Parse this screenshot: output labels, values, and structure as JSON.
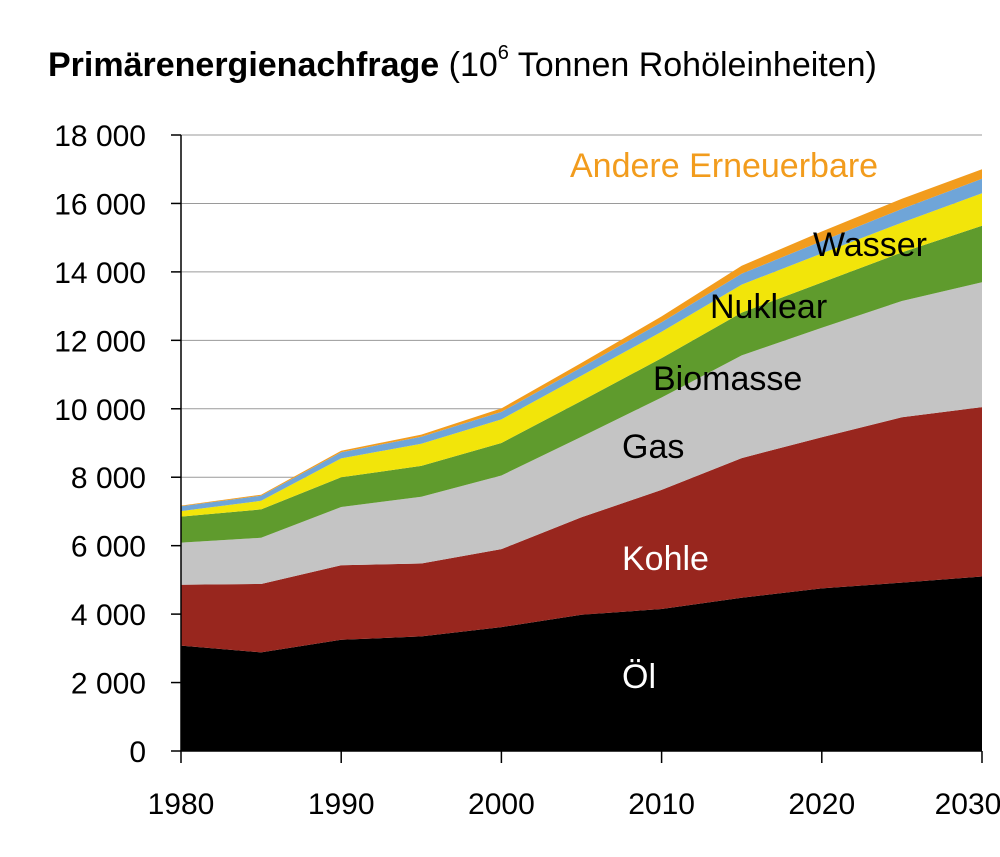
{
  "title": {
    "bold": "Primärenergienachfrage",
    "paren_open": "(10",
    "sup": "6",
    "unit_rest": " Tonnen Rohöleinheiten)"
  },
  "chart_data": {
    "type": "area",
    "stacked": true,
    "title": "Primärenergienachfrage (10^6 Tonnen Rohöleinheiten)",
    "xlabel": "",
    "ylabel": "",
    "xlim": [
      1980,
      2030
    ],
    "ylim": [
      0,
      18000
    ],
    "grid": "horizontal",
    "legend": "inline labels",
    "x_ticks": [
      "1980",
      "1990",
      "2000",
      "2010",
      "2020",
      "2030"
    ],
    "y_ticks": [
      "0",
      "2 000",
      "4 000",
      "6 000",
      "8 000",
      "10 000",
      "12 000",
      "14 000",
      "16 000",
      "18 000"
    ],
    "x": [
      1980,
      1985,
      1990,
      1995,
      2000,
      2005,
      2010,
      2015,
      2020,
      2025,
      2030
    ],
    "series": [
      {
        "name": "Öl",
        "color": "#000000",
        "values": [
          3080,
          2880,
          3250,
          3350,
          3620,
          3980,
          4150,
          4480,
          4750,
          4920,
          5100
        ]
      },
      {
        "name": "Kohle",
        "color": "#98261e",
        "values": [
          1780,
          2000,
          2180,
          2130,
          2280,
          2850,
          3480,
          4080,
          4420,
          4830,
          4950
        ]
      },
      {
        "name": "Gas",
        "color": "#c4c4c4",
        "values": [
          1230,
          1350,
          1700,
          1950,
          2150,
          2350,
          2700,
          3000,
          3200,
          3400,
          3650
        ]
      },
      {
        "name": "Biomasse",
        "color": "#5f9b2d",
        "values": [
          760,
          830,
          870,
          900,
          950,
          1050,
          1150,
          1250,
          1320,
          1420,
          1650
        ]
      },
      {
        "name": "Nuklear",
        "color": "#f2e50a",
        "values": [
          160,
          250,
          550,
          650,
          690,
          740,
          770,
          820,
          850,
          870,
          950
        ]
      },
      {
        "name": "Wasser",
        "color": "#6fa5d8",
        "values": [
          140,
          150,
          180,
          200,
          220,
          240,
          280,
          320,
          360,
          400,
          420
        ]
      },
      {
        "name": "Andere Erneuerbare",
        "color": "#f29c1d",
        "values": [
          20,
          30,
          45,
          65,
          100,
          130,
          170,
          230,
          280,
          300,
          280
        ]
      }
    ]
  }
}
